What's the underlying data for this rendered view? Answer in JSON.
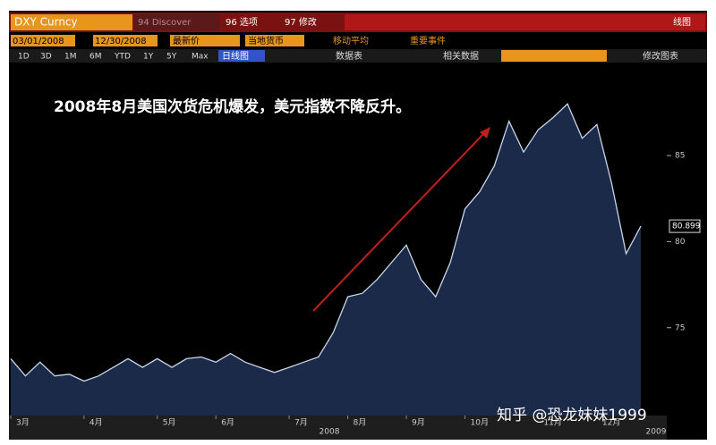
{
  "toolbar": {
    "ticker": "DXY Curncy",
    "discover": "94 Discover",
    "options": "96 选项",
    "edit": "97 修改",
    "chart_kind": "线图",
    "start_date": "03/01/2008",
    "end_date": "12/30/2008",
    "price_field": "最新价",
    "currency": "当地货币",
    "moving_avg": "移动平均",
    "events": "重要事件",
    "periods": [
      "1D",
      "3D",
      "1M",
      "6M",
      "YTD",
      "1Y",
      "5Y",
      "Max"
    ],
    "line_chart": "日线图",
    "data_table": "数据表",
    "related": "相关数据",
    "edit_chart": "修改图表"
  },
  "chart_data": {
    "type": "area",
    "annotation": "2008年8月美国次货危机爆发，美元指数不降反升。",
    "categories": [
      "3月",
      null,
      null,
      null,
      null,
      "4月",
      null,
      null,
      null,
      null,
      "5月",
      null,
      null,
      null,
      "6月",
      null,
      null,
      null,
      null,
      "7月",
      null,
      null,
      null,
      "8月",
      null,
      null,
      null,
      "9月",
      null,
      null,
      null,
      "10月",
      null,
      null,
      null,
      null,
      "11月",
      null,
      null,
      null,
      "12月",
      null,
      null,
      null
    ],
    "values": [
      73.2,
      72.2,
      73.0,
      72.2,
      72.3,
      71.9,
      72.2,
      72.7,
      73.2,
      72.7,
      73.2,
      72.7,
      73.2,
      73.3,
      73.0,
      73.5,
      73.0,
      72.7,
      72.4,
      72.7,
      73.0,
      73.3,
      74.7,
      76.8,
      77.0,
      77.8,
      78.8,
      79.8,
      77.8,
      76.8,
      78.8,
      81.9,
      82.9,
      84.4,
      87.0,
      85.2,
      86.5,
      87.2,
      88.0,
      86.0,
      86.8,
      83.4,
      79.3,
      80.899
    ],
    "year_labels": [
      "2008",
      "2009"
    ],
    "last_price": 80.899,
    "ylim": [
      69.9,
      90.3
    ],
    "yticks": [
      75,
      80,
      85
    ],
    "color": "#1b2a48",
    "line_color": "#c9d6ea"
  },
  "watermark": "知乎 @恐龙妹妹1999"
}
